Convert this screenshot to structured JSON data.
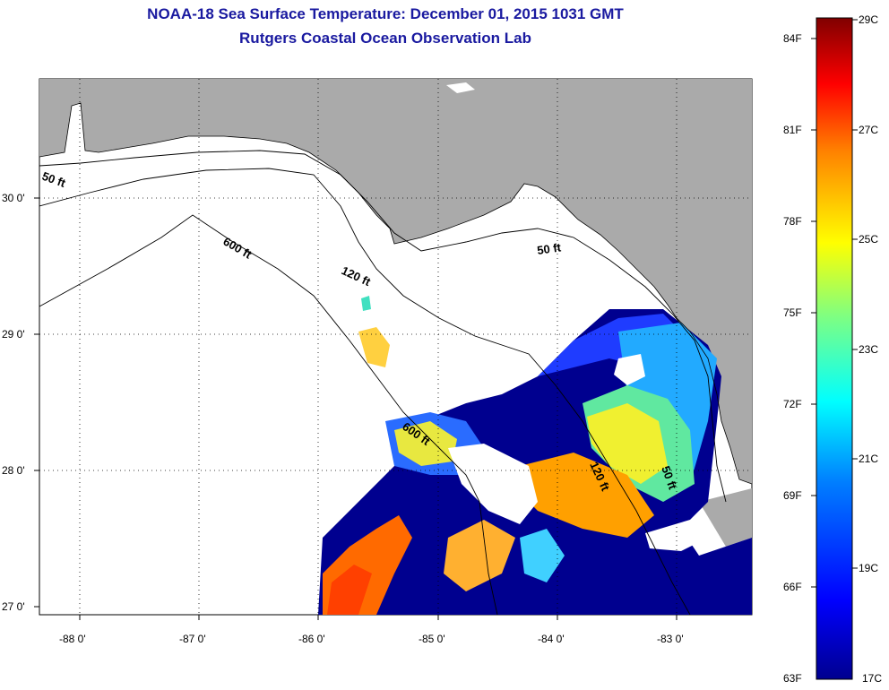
{
  "header": {
    "title": "NOAA-18 Sea Surface Temperature:  December 01, 2015 1031 GMT",
    "subtitle": "Rutgers Coastal Ocean Observation Lab"
  },
  "map": {
    "lat_labels": [
      "30 0'",
      "29 0'",
      "28 0'",
      "27 0'"
    ],
    "lon_labels": [
      "-88 0'",
      "-87 0'",
      "-86 0'",
      "-85 0'",
      "-84 0'",
      "-83 0'"
    ],
    "contour_labels": [
      "50 ft",
      "600 ft",
      "120 ft",
      "50 ft",
      "600 ft",
      "120 ft",
      "50 ft"
    ]
  },
  "colorbar": {
    "fahrenheit_labels": [
      "84F",
      "81F",
      "78F",
      "75F",
      "72F",
      "69F",
      "66F",
      "63F"
    ],
    "celsius_labels": [
      "29C",
      "27C",
      "25C",
      "23C",
      "21C",
      "19C",
      "17C"
    ]
  },
  "colors": {
    "title": "#1a1aa0",
    "land": "#aaaaaa",
    "water": "#ffffff",
    "sst_cold": "#00008f",
    "sst_warm": "#800000"
  }
}
